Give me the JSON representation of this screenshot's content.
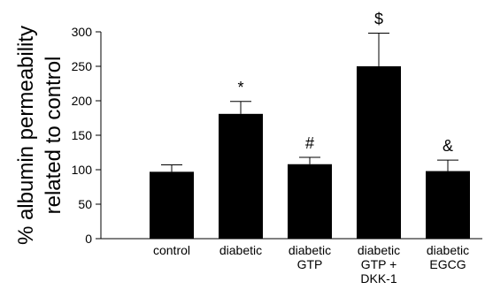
{
  "chart_data": {
    "type": "bar",
    "title": "",
    "xlabel": "",
    "ylabel": "% albumin permeability related to control",
    "ylabel_lines": [
      "% albumin permeability",
      "related to control"
    ],
    "ylim": [
      0,
      300
    ],
    "yticks": [
      0,
      50,
      100,
      150,
      200,
      250,
      300
    ],
    "grid": false,
    "legend": "none",
    "bar_color": "#000000",
    "categories": [
      "control",
      "diabetic",
      "diabetic GTP",
      "diabetic GTP + DKK-1",
      "diabetic EGCG"
    ],
    "category_lines": [
      [
        "control"
      ],
      [
        "diabetic"
      ],
      [
        "diabetic",
        "GTP"
      ],
      [
        "diabetic",
        "GTP +",
        "DKK-1"
      ],
      [
        "diabetic",
        "EGCG"
      ]
    ],
    "values": [
      97,
      181,
      108,
      250,
      98
    ],
    "error_upper": [
      10,
      18,
      10,
      48,
      16
    ],
    "annotations": [
      "",
      "*",
      "#",
      "$",
      "&"
    ]
  }
}
